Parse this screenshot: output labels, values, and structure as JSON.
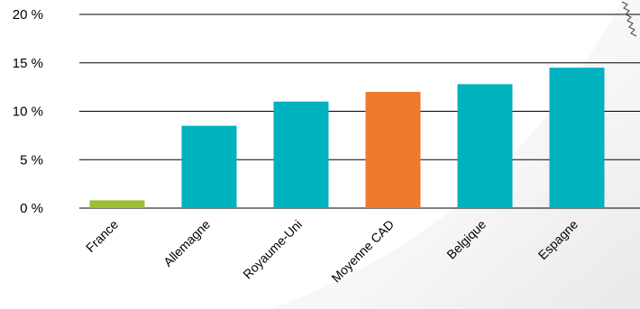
{
  "chart_data": {
    "type": "bar",
    "categories": [
      "France",
      "Allemagne",
      "Royaume-Uni",
      "Moyenne CAD",
      "Belgique",
      "Espagne"
    ],
    "values": [
      0.8,
      8.5,
      11.0,
      12.0,
      12.8,
      14.5
    ],
    "colors": [
      "#9bc22e",
      "#00b2bd",
      "#00b2bd",
      "#ef7a2b",
      "#00b2bd",
      "#00b2bd"
    ],
    "ylim": [
      0,
      20
    ],
    "yticks": [
      "0 %",
      "5 %",
      "10 %",
      "15 %",
      "20 %"
    ],
    "ytick_values": [
      0,
      5,
      10,
      15,
      20
    ],
    "grid": true,
    "title": "",
    "xlabel": "",
    "ylabel": ""
  }
}
